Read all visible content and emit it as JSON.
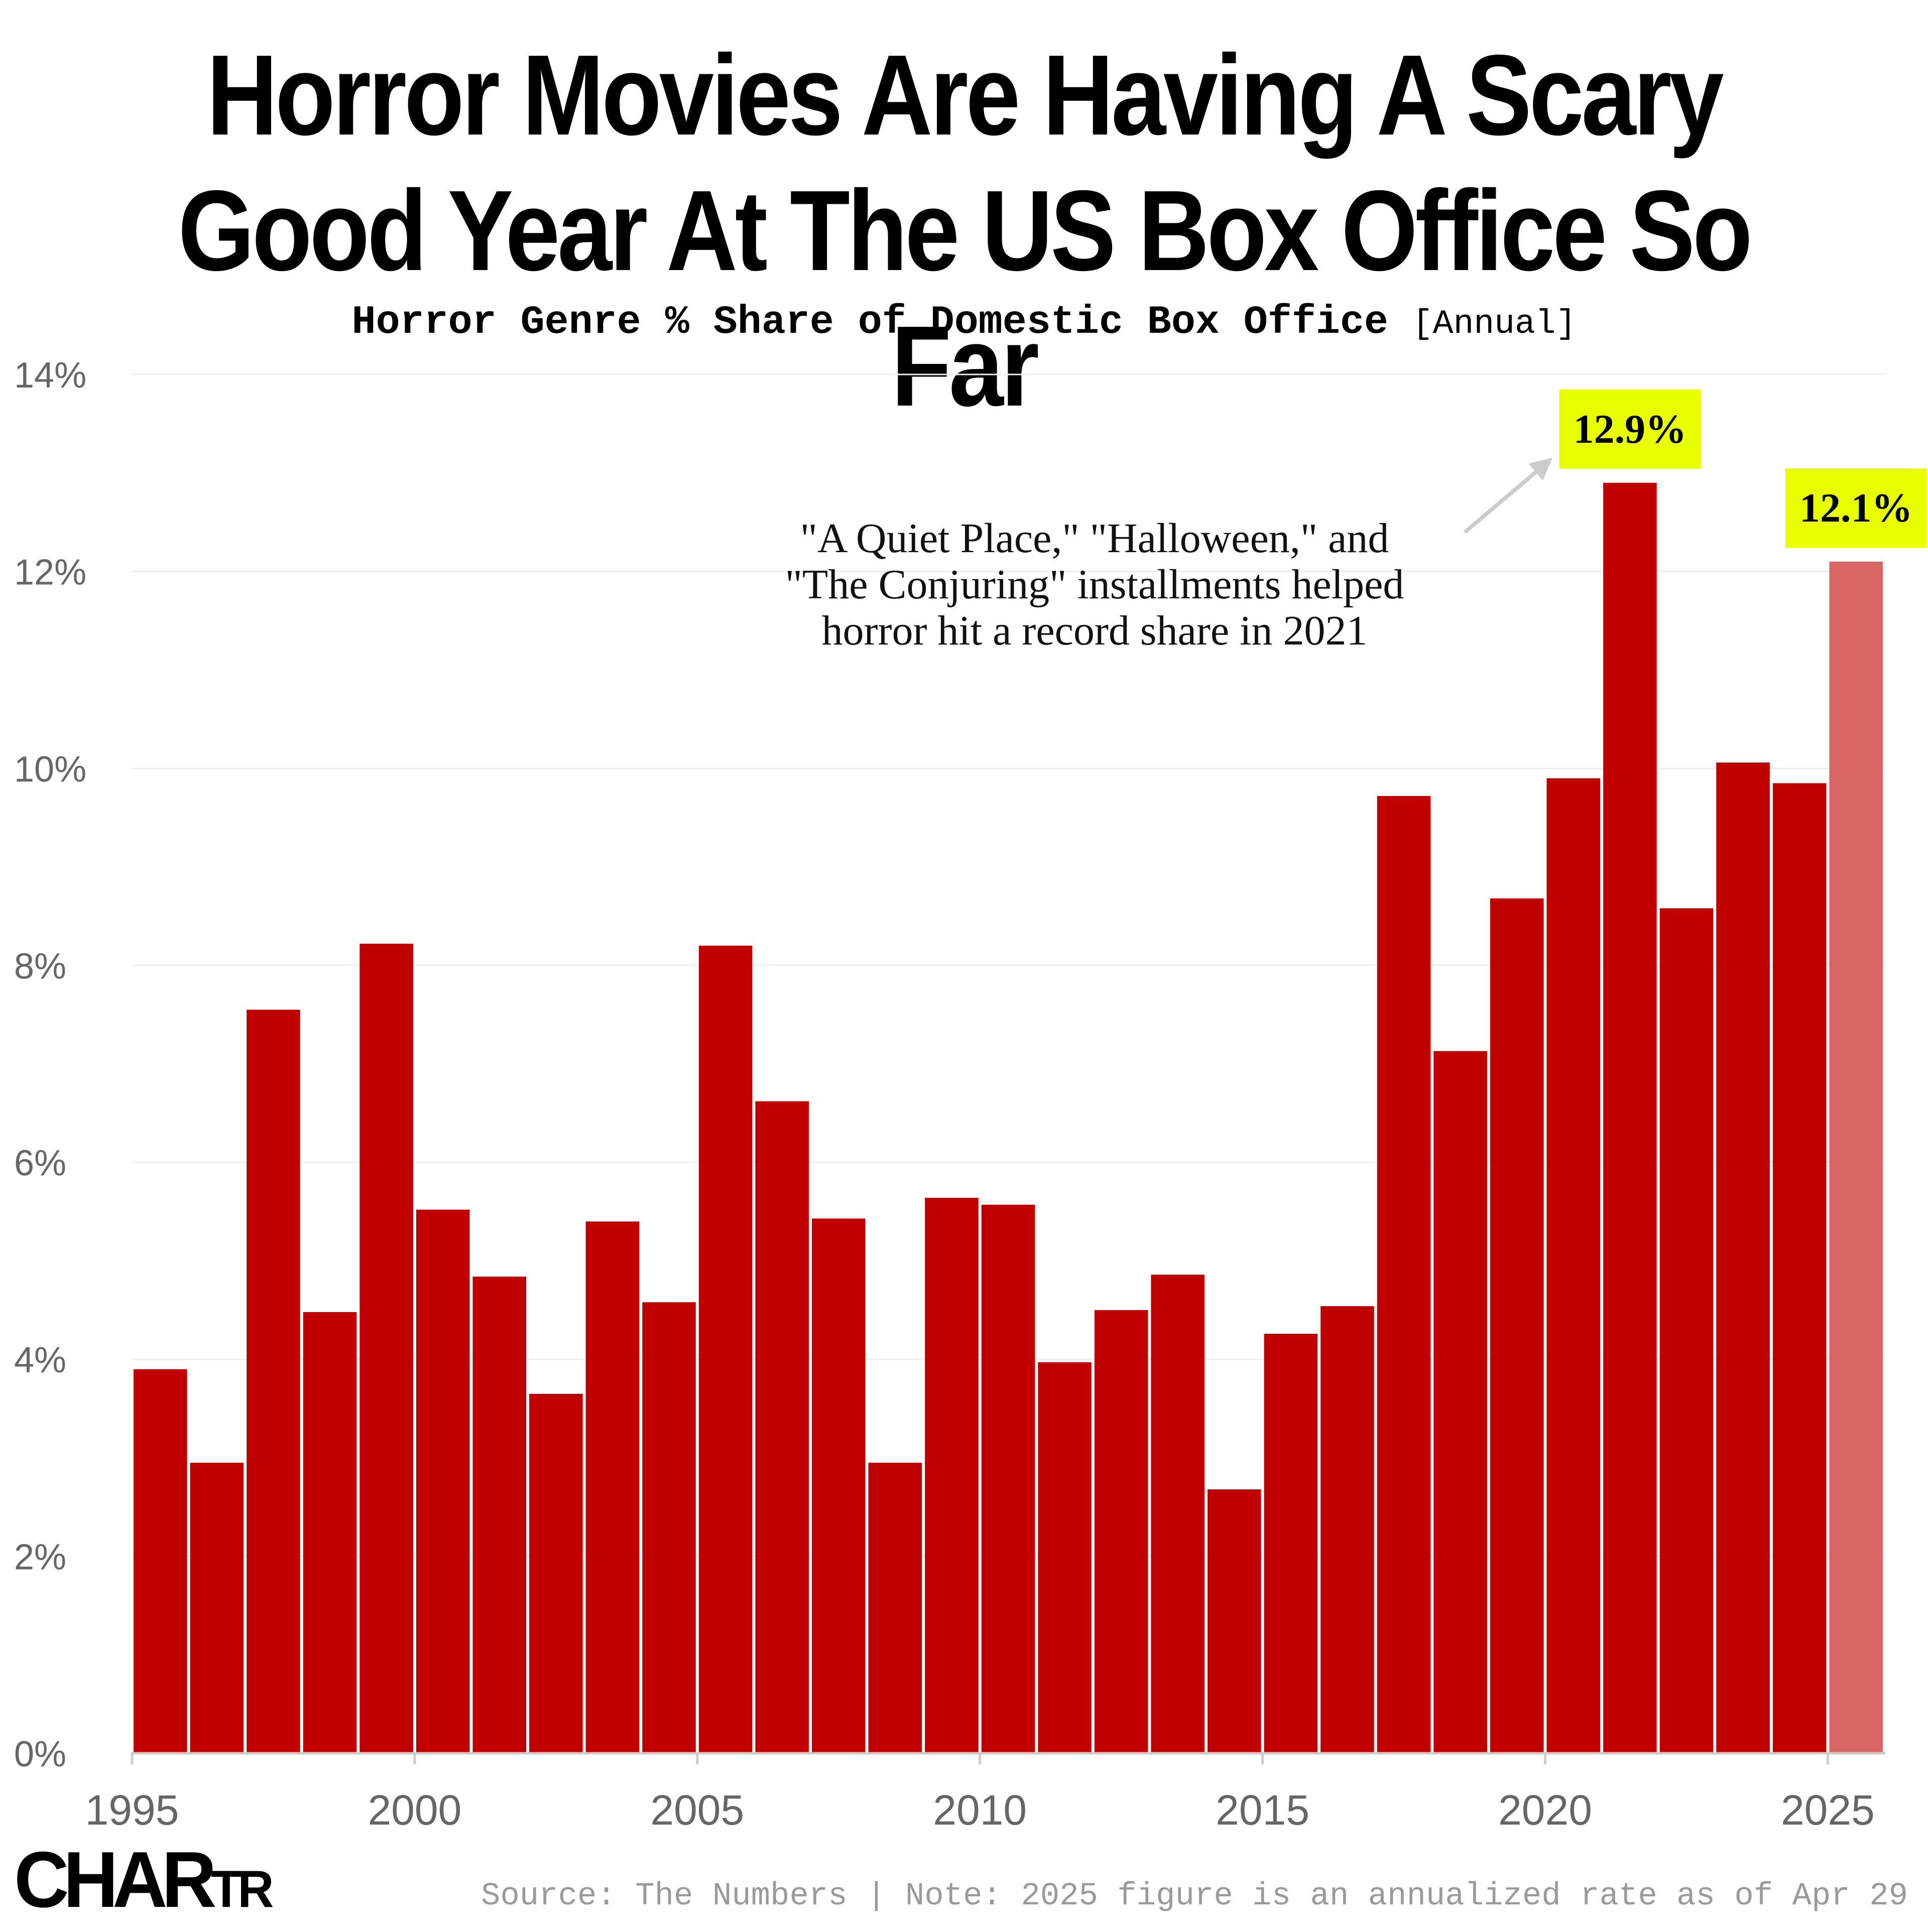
{
  "title_line_1": "Horror Movies Are Having A Scary",
  "title_line_2": "Good Year At The US Box Office So Far",
  "subtitle_main": "Horror Genre % Share of Domestic Box Office",
  "subtitle_note": "[Annual]",
  "source_note": "Source: The Numbers | Note: 2025 figure is an annualized rate as of Apr 29",
  "logo_text": "CHARTR",
  "colors": {
    "bar": "#c00000",
    "bar_projected": "#d96565",
    "callout_bg": "#e8ff00",
    "grid": "#eeeeee",
    "axis": "#cccccc"
  },
  "chart_data": {
    "type": "bar",
    "title": "Horror Genre % Share of Domestic Box Office",
    "xlabel": "",
    "ylabel": "",
    "x": [
      1995,
      1996,
      1997,
      1998,
      1999,
      2000,
      2001,
      2002,
      2003,
      2004,
      2005,
      2006,
      2007,
      2008,
      2009,
      2010,
      2011,
      2012,
      2013,
      2014,
      2015,
      2016,
      2017,
      2018,
      2019,
      2020,
      2021,
      2022,
      2023,
      2024,
      2025
    ],
    "values": [
      3.9,
      2.95,
      7.55,
      4.48,
      8.22,
      5.52,
      4.84,
      3.65,
      5.4,
      4.58,
      8.2,
      6.62,
      5.43,
      2.95,
      5.64,
      5.57,
      3.97,
      4.5,
      4.86,
      2.68,
      4.26,
      4.54,
      9.72,
      7.13,
      8.68,
      9.9,
      12.9,
      8.58,
      10.06,
      9.85,
      12.1
    ],
    "projected": [
      false,
      false,
      false,
      false,
      false,
      false,
      false,
      false,
      false,
      false,
      false,
      false,
      false,
      false,
      false,
      false,
      false,
      false,
      false,
      false,
      false,
      false,
      false,
      false,
      false,
      false,
      false,
      false,
      false,
      false,
      true
    ],
    "ylim": [
      0,
      14
    ],
    "yticks": [
      0,
      2,
      4,
      6,
      8,
      10,
      12,
      14
    ],
    "ytick_labels": [
      "0%",
      "2%",
      "4%",
      "6%",
      "8%",
      "10%",
      "12%",
      "14%"
    ],
    "xticks": [
      1995,
      2000,
      2005,
      2010,
      2015,
      2020,
      2025
    ],
    "xtick_labels": [
      "1995",
      "2000",
      "2005",
      "2010",
      "2015",
      "2020",
      "2025"
    ],
    "grid": true,
    "callouts": [
      {
        "year": 2021,
        "label": "12.9%"
      },
      {
        "year": 2025,
        "label": "12.1%"
      }
    ],
    "annotation": {
      "lines": [
        "\"A Quiet Place,\" \"Halloween,\" and",
        "\"The Conjuring\" installments helped",
        "horror hit a record share in 2021"
      ],
      "target_year": 2021
    }
  }
}
